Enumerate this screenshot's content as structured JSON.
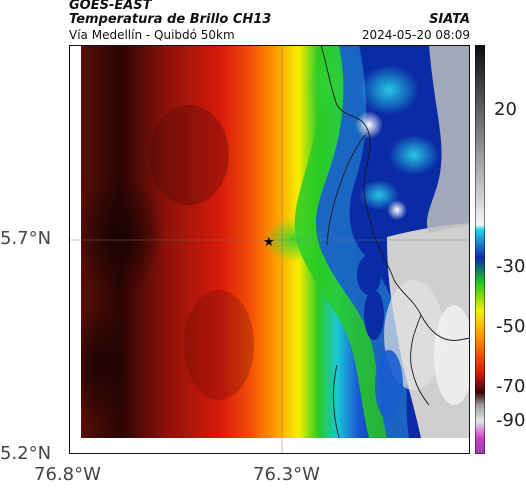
{
  "header": {
    "agency": "GOES-EAST",
    "product": "Temperatura de Brillo CH13",
    "region": "Vía Medellín - Quibdó 50km",
    "org": "SIATA",
    "datetime": "2024-05-20 08:09"
  },
  "map": {
    "axes": {
      "lat_ticks": [
        {
          "label": "5.7°N",
          "value": 5.7
        },
        {
          "label": "5.2°N",
          "value": 5.2
        }
      ],
      "lon_ticks": [
        {
          "label": "76.8°W",
          "value": -76.8
        },
        {
          "label": "76.3°W",
          "value": -76.3
        }
      ]
    },
    "marker": {
      "symbol": "★",
      "lat": 5.7,
      "lon": -76.32
    },
    "gridlines": true
  },
  "colorbar": {
    "labels": [
      "20",
      "-30",
      "-50",
      "-70",
      "-90"
    ],
    "colors": {
      "black": "#1a1a1a",
      "dark_red": "#4a0a0a",
      "red": "#d81b0b",
      "orange": "#ff8a00",
      "yellow": "#f2f000",
      "green": "#18c418",
      "cyan": "#18c8d8",
      "blue": "#0a2bb0",
      "grey": "#cfcfcf",
      "magenta": "#cc44cc"
    }
  }
}
